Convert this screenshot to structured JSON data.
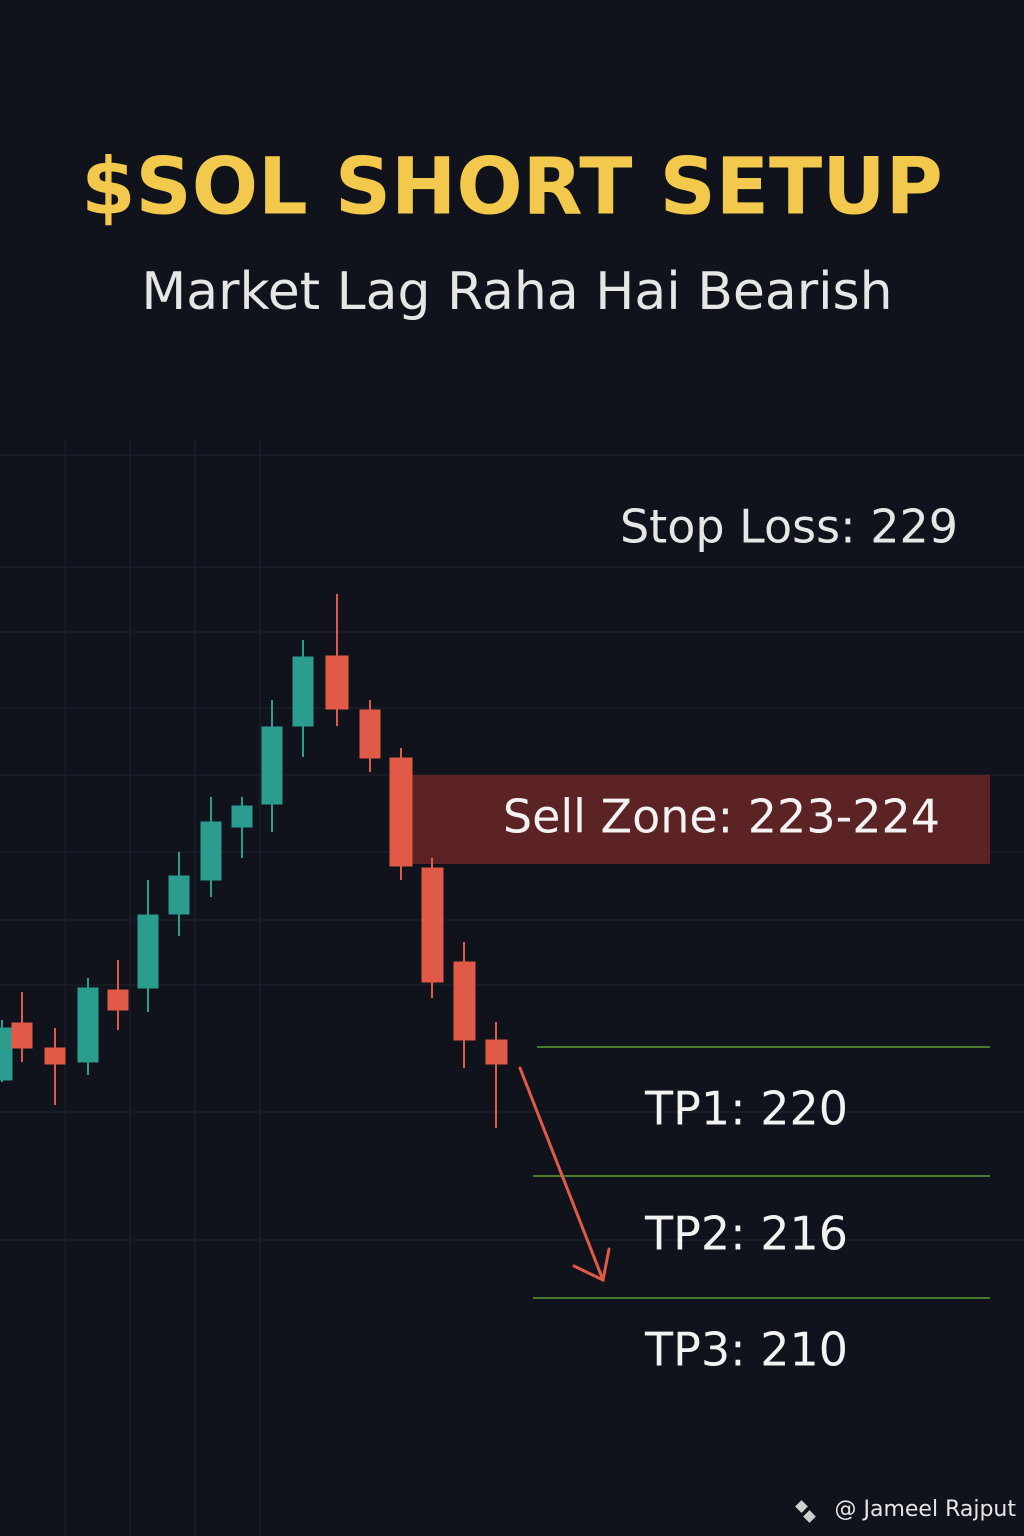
{
  "header": {
    "title": "$SOL SHORT SETUP",
    "subtitle": "Market Lag Raha Hai Bearish"
  },
  "levels": {
    "stop_loss": "Stop Loss: 229",
    "sell_zone": "Sell Zone: 223-224",
    "tp1": "TP1: 220",
    "tp2": "TP2: 216",
    "tp3": "TP3: 210"
  },
  "footer": {
    "credit": "@ Jameel Rajput"
  }
}
